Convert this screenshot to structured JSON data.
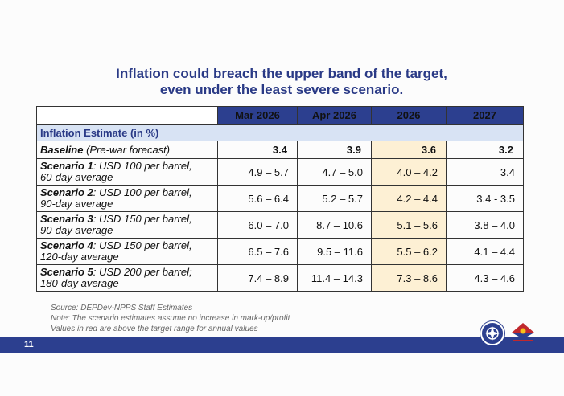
{
  "title_line1": "Inflation could breach the upper band of the target,",
  "title_line2": "even under the least severe scenario.",
  "columns": [
    "Mar 2026",
    "Apr 2026",
    "2026",
    "2027"
  ],
  "section_label": "Inflation Estimate (in %)",
  "rows": [
    {
      "lead": "Baseline",
      "rest": " (Pre-war forecast)",
      "cont": "",
      "values": [
        "3.4",
        "3.9",
        "3.6",
        "3.2"
      ]
    },
    {
      "lead": "Scenario 1",
      "rest": ": USD 100 per barrel,",
      "cont": "60-day average",
      "values": [
        "4.9 – 5.7",
        "4.7 – 5.0",
        "4.0 – 4.2",
        "3.4"
      ]
    },
    {
      "lead": "Scenario 2",
      "rest": ": USD 100 per barrel,",
      "cont": "90-day average",
      "values": [
        "5.6 – 6.4",
        "5.2 – 5.7",
        "4.2 – 4.4",
        "3.4 - 3.5"
      ]
    },
    {
      "lead": "Scenario 3",
      "rest": ": USD 150 per barrel,",
      "cont": "90-day average",
      "values": [
        "6.0 – 7.0",
        "8.7 – 10.6",
        "5.1 – 5.6",
        "3.8 – 4.0"
      ]
    },
    {
      "lead": "Scenario 4",
      "rest": ": USD 150 per barrel,",
      "cont": "120-day average",
      "values": [
        "6.5 – 7.6",
        "9.5 – 11.6",
        "5.5 – 6.2",
        "4.1 – 4.4"
      ]
    },
    {
      "lead": "Scenario 5",
      "rest": ": USD 200 per barrel;",
      "cont": "180-day average",
      "values": [
        "7.4 – 8.9",
        "11.4 – 14.3",
        "7.3 – 8.6",
        "4.3 – 4.6"
      ]
    }
  ],
  "notes": [
    "Source: DEPDev-NPPS Staff Estimates",
    "Note: The scenario estimates assume no increase in mark-up/profit",
    "Values in red are above the target range for annual values"
  ],
  "page_number": "11",
  "logo_icons": [
    "agency-seal-icon",
    "bagong-pilipinas-logo-icon"
  ],
  "colors": {
    "header_bg": "#2c3f8f",
    "section_bg": "#d8e3f4",
    "highlight_2026": "#fdf0d4",
    "title": "#2a3a86"
  }
}
